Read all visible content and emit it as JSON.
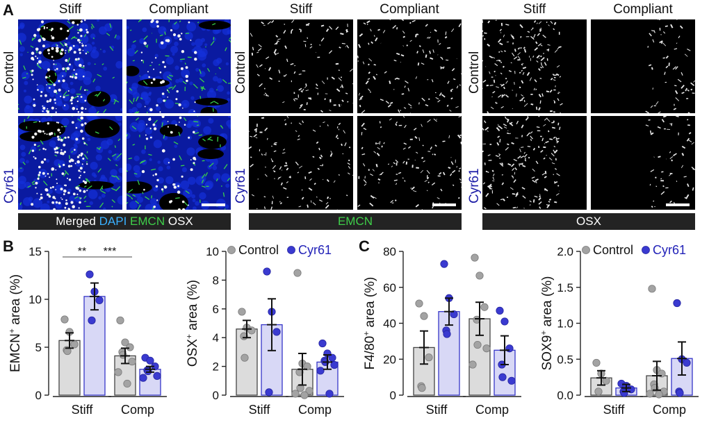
{
  "panel_a": {
    "letter": "A",
    "col_labels": [
      "Stiff",
      "Compliant"
    ],
    "row_labels": [
      "Control",
      "Cyr61"
    ],
    "row_label_colors": [
      "#111111",
      "#1a1aa6"
    ],
    "groups": [
      {
        "key": "merged",
        "legend": {
          "merged": "Merged",
          "dapi": "DAPI",
          "emcn": "EMCN",
          "osx": "OSX"
        }
      },
      {
        "key": "emcn",
        "legend": "EMCN",
        "legend_color": "#3fcf4a"
      },
      {
        "key": "osx",
        "legend": "OSX",
        "legend_color": "#ffffff"
      }
    ],
    "legend_colors": {
      "dapi": "#3ab0ff",
      "emcn": "#3fcf4a",
      "osx": "#ffffff",
      "merged": "#ffffff"
    }
  },
  "panel_b": {
    "letter": "B"
  },
  "panel_c": {
    "letter": "C"
  },
  "legend": {
    "control": "Control",
    "cyr61": "Cyr61"
  },
  "colors": {
    "control_fill": "#dcdcdc",
    "control_dot": "#a3a3a3",
    "cyr61_fill": "#d8d8f6",
    "cyr61_dot": "#3a3ad0",
    "cyr61_text": "#2222b8"
  },
  "chart_data": [
    {
      "type": "bar",
      "title": "",
      "ylabel": "EMCN⁺ area (%)",
      "ylabel_main": "EMCN",
      "ylabel_sup": "+",
      "ylabel_rest": " area (%)",
      "ylim": [
        0,
        15
      ],
      "yticks": [
        0,
        5,
        10,
        15
      ],
      "categories": [
        "Stiff",
        "Comp"
      ],
      "series": [
        {
          "name": "Control",
          "means": [
            5.7,
            4.1
          ],
          "sem": [
            0.8,
            0.8
          ],
          "points": [
            [
              7.9,
              6.6,
              5.3,
              4.7,
              4.6
            ],
            [
              7.8,
              5.5,
              5.0,
              4.5,
              4.2,
              3.5,
              2.4,
              1.2
            ]
          ]
        },
        {
          "name": "Cyr61",
          "means": [
            10.3,
            2.7
          ],
          "sem": [
            1.4,
            0.3
          ],
          "points": [
            [
              12.6,
              10.8,
              9.9,
              7.8
            ],
            [
              3.9,
              3.6,
              3.0,
              2.6,
              2.5,
              2.0,
              1.8
            ]
          ]
        }
      ],
      "significance": [
        {
          "label": "**",
          "from": [
            0,
            0
          ],
          "to": [
            0,
            1
          ]
        },
        {
          "label": "***",
          "from": [
            0,
            1
          ],
          "to": [
            1,
            0
          ]
        }
      ]
    },
    {
      "type": "bar",
      "title": "",
      "ylabel": "OSX⁺ area (%)",
      "ylabel_main": "OSX",
      "ylabel_sup": "+",
      "ylabel_rest": " area (%)",
      "ylim": [
        0,
        10
      ],
      "yticks": [
        0,
        2,
        4,
        6,
        8,
        10
      ],
      "categories": [
        "Stiff",
        "Comp"
      ],
      "legend_labels": [
        "Control",
        "Cyr61"
      ],
      "series": [
        {
          "name": "Control",
          "means": [
            4.6,
            1.8
          ],
          "sem": [
            0.6,
            1.1
          ],
          "points": [
            [
              5.8,
              4.7,
              4.5,
              4.1,
              2.6
            ],
            [
              8.5,
              2.2,
              2.0,
              1.6,
              0.5,
              0.3,
              0.1,
              0.0
            ]
          ]
        },
        {
          "name": "Cyr61",
          "means": [
            4.9,
            2.3
          ],
          "sem": [
            1.8,
            0.5
          ],
          "points": [
            [
              8.6,
              5.8,
              4.4,
              0.2
            ],
            [
              3.6,
              2.9,
              2.6,
              2.4,
              2.3,
              2.1,
              1.7,
              0.1
            ]
          ]
        }
      ]
    },
    {
      "type": "bar",
      "title": "",
      "ylabel": "F4/80⁺ area (%)",
      "ylabel_main": "F4/80",
      "ylabel_sup": "+",
      "ylabel_rest": " area (%)",
      "ylim": [
        0,
        80
      ],
      "yticks": [
        0,
        20,
        40,
        60,
        80
      ],
      "categories": [
        "Stiff",
        "Comp"
      ],
      "series": [
        {
          "name": "Control",
          "means": [
            26.5,
            42.5
          ],
          "sem": [
            9.2,
            9.2
          ],
          "points": [
            [
              51.0,
              44.0,
              21.0,
              5.0,
              4.0
            ],
            [
              76.5,
              66.5,
              49.0,
              42.0,
              28.0,
              26.0,
              17.0
            ]
          ]
        },
        {
          "name": "Cyr61",
          "means": [
            46.5,
            25.0
          ],
          "sem": [
            7.5,
            8.0
          ],
          "points": [
            [
              73.0,
              54.0,
              45.0,
              36.0,
              34.0
            ],
            [
              47.0,
              41.0,
              26.0,
              17.0,
              10.0,
              8.0
            ]
          ]
        }
      ]
    },
    {
      "type": "bar",
      "title": "",
      "ylabel": "SOX9⁺ area (%)",
      "ylabel_main": "SOX9",
      "ylabel_sup": "+",
      "ylabel_rest": " area (%)",
      "ylim": [
        0,
        2.0
      ],
      "yticks": [
        0.0,
        0.5,
        1.0,
        1.5,
        2.0
      ],
      "ytick_labels": [
        "0.0",
        "0.5",
        "1.0",
        "1.5",
        "2.0"
      ],
      "categories": [
        "Stiff",
        "Comp"
      ],
      "legend_labels": [
        "Control",
        "Cyr61"
      ],
      "series": [
        {
          "name": "Control",
          "means": [
            0.24,
            0.27
          ],
          "sem": [
            0.1,
            0.2
          ],
          "points": [
            [
              0.45,
              0.3,
              0.2,
              0.05
            ],
            [
              1.48,
              0.35,
              0.3,
              0.15,
              0.1,
              0.05,
              0.02,
              0.01
            ]
          ]
        },
        {
          "name": "Cyr61",
          "means": [
            0.1,
            0.51
          ],
          "sem": [
            0.05,
            0.23
          ],
          "points": [
            [
              0.16,
              0.13,
              0.08,
              0.05,
              0.03
            ],
            [
              1.28,
              0.5,
              0.45,
              0.05,
              0.03
            ]
          ]
        }
      ]
    }
  ]
}
